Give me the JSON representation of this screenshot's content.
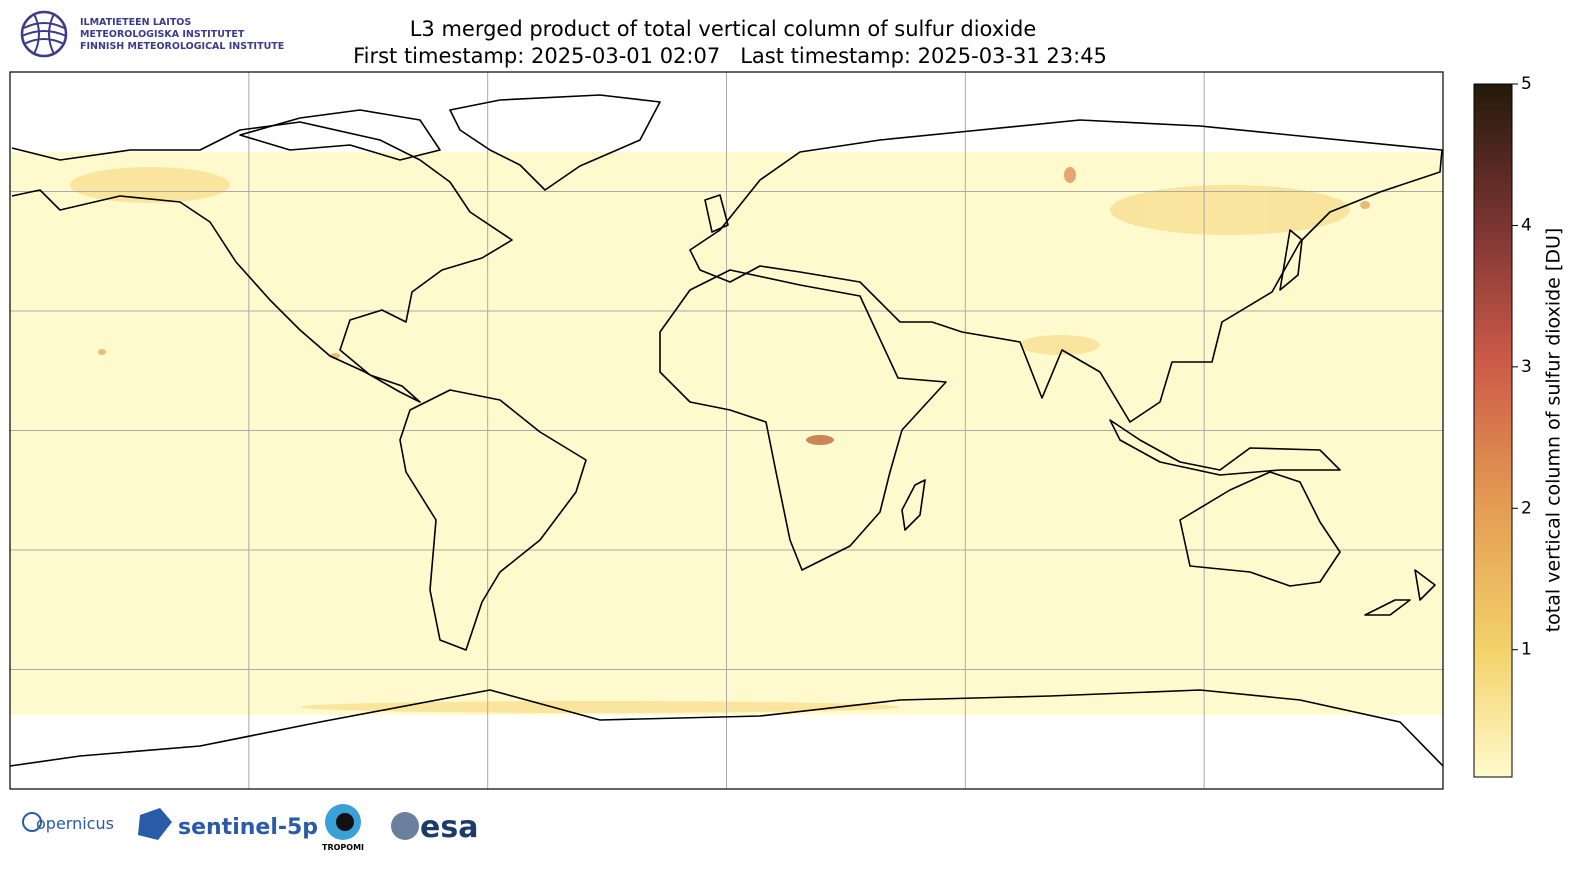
{
  "header": {
    "title": "L3 merged product of total vertical column of sulfur dioxide",
    "subtitle": "First timestamp: 2025-03-01 02:07   Last timestamp: 2025-03-31 23:45",
    "institute": [
      "ILMATIETEEN LAITOS",
      "METEOROLOGISKA INSTITUTET",
      "FINNISH METEOROLOGICAL INSTITUTE"
    ]
  },
  "map": {
    "lon_range": [
      -180,
      180
    ],
    "lat_range": [
      -90,
      90
    ],
    "grid_lon": [
      -120,
      -60,
      0,
      60,
      120
    ],
    "grid_lat": [
      60,
      30,
      0,
      -30,
      -60
    ]
  },
  "colorbar": {
    "label": "total vertical column of sulfur dioxide [DU]",
    "clim": [
      0.1,
      5
    ],
    "ticks": [
      1,
      2,
      3,
      4,
      5
    ]
  },
  "footer": {
    "logos": [
      "opernicus",
      "sentinel-5p",
      "TROPOMI",
      "esa"
    ]
  }
}
